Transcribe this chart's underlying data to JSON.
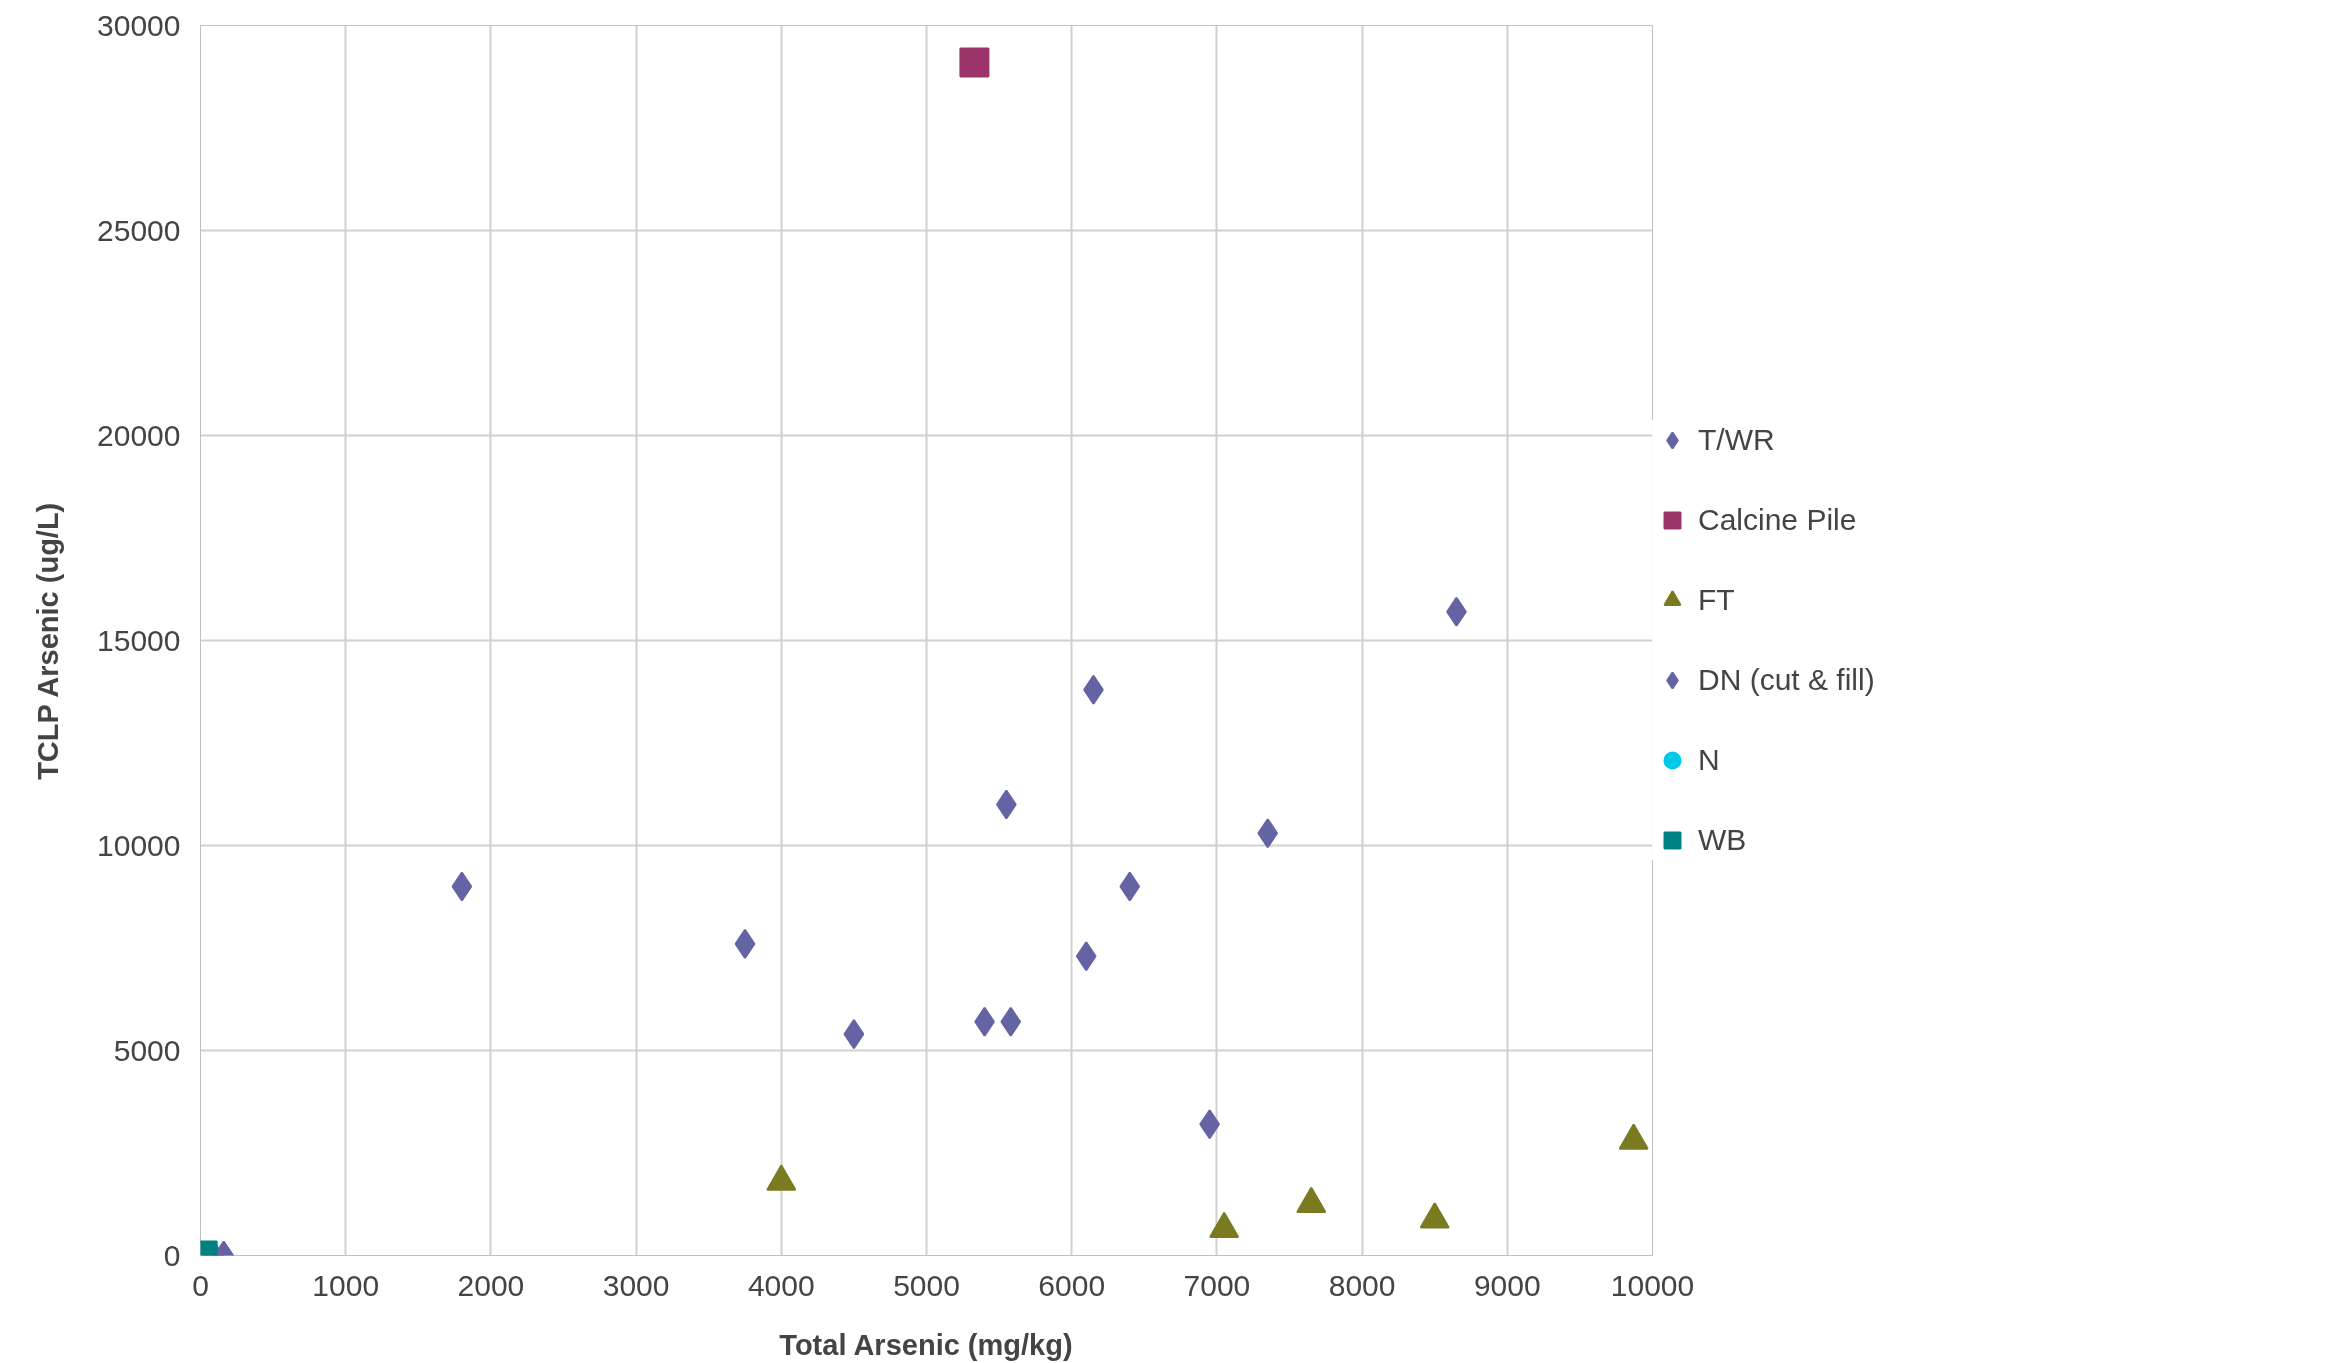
{
  "chart_data": {
    "type": "scatter",
    "xlabel": "Total Arsenic (mg/kg)",
    "ylabel": "TCLP Arsenic (ug/L)",
    "xlim": [
      0,
      10000
    ],
    "xticks": [
      0,
      1000,
      2000,
      3000,
      4000,
      5000,
      6000,
      7000,
      8000,
      9000,
      10000
    ],
    "ylim": [
      0,
      30000
    ],
    "yticks": [
      0,
      5000,
      10000,
      15000,
      20000,
      25000,
      30000
    ],
    "grid": true,
    "legend": "right",
    "series": [
      {
        "name": "T/WR",
        "color": "#6464a4",
        "marker": "diamond",
        "x": [
          90,
          160
        ],
        "values": [
          0,
          0
        ]
      },
      {
        "name": "Calcine Pile",
        "color": "#9b3468",
        "marker": "square",
        "x": [
          5330
        ],
        "values": [
          29100
        ]
      },
      {
        "name": "FT",
        "color": "#7a7a20",
        "marker": "triangle",
        "x": [
          4000,
          7050,
          7650,
          8500,
          9870
        ],
        "values": [
          1800,
          650,
          1260,
          880,
          2800
        ]
      },
      {
        "name": "DN (cut & fill)",
        "color": "#6464a4",
        "marker": "diamond",
        "x": [
          1800,
          3750,
          4500,
          5400,
          5580,
          5550,
          6100,
          6150,
          6400,
          6950,
          7350,
          8650
        ],
        "values": [
          9000,
          7600,
          5400,
          5700,
          5700,
          11000,
          7300,
          13800,
          9000,
          3200,
          10300,
          15700
        ]
      },
      {
        "name": "N",
        "color": "#00c8e8",
        "marker": "circle"
      },
      {
        "name": "WB",
        "color": "#008080",
        "marker": "square",
        "x": [
          15
        ],
        "values": [
          0
        ]
      }
    ]
  }
}
